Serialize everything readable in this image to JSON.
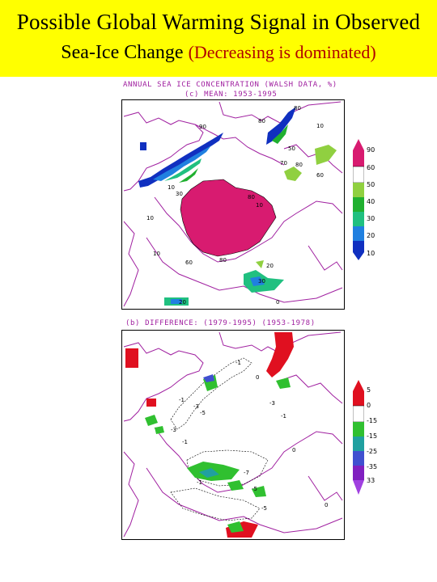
{
  "title": {
    "line1": "Possible Global Warming Signal in Observed",
    "line2_main": "Sea-Ice Change",
    "line2_accent": "(Decreasing is dominated)",
    "band_color": "#ffff00",
    "accent_color": "#b00000"
  },
  "top_map": {
    "header_line1": "ANNUAL SEA ICE CONCENTRATION (WALSH DATA, %)",
    "header_line2": "(c) MEAN: 1953-1995",
    "contour_labels": [
      "90",
      "80",
      "10",
      "80",
      "80",
      "60",
      "10",
      "30",
      "80",
      "10",
      "20",
      "30",
      "60",
      "80",
      "50",
      "70",
      "10",
      "10",
      "20",
      "0"
    ],
    "colorbar_labels": [
      "90",
      "60",
      "50",
      "40",
      "30",
      "20",
      "10"
    ]
  },
  "bottom_map": {
    "header_line1": "(b) DIFFERENCE: (1979-1995) (1953-1978)",
    "contour_labels": [
      "-1",
      "-3",
      "-5",
      "-1",
      "0",
      "-3",
      "-1",
      "-7",
      "-5",
      "-1",
      "0",
      "-3",
      "-1",
      "-5",
      "0"
    ],
    "colorbar_labels": [
      "5",
      "0",
      "-15",
      "-15",
      "-25",
      "-35",
      "33"
    ]
  },
  "palette": {
    "ice_90": "#d81b70",
    "ice_60": "#ffffff",
    "ice_50": "#90d040",
    "ice_40": "#20b030",
    "ice_30": "#20c080",
    "ice_20": "#2080e0",
    "ice_10": "#1030c0",
    "coast": "#a020a0",
    "diff_pos": "#e01020",
    "diff_neg1": "#30c030",
    "diff_neg2": "#20a0a0",
    "diff_neg3": "#4050d0",
    "diff_neg4": "#8020c0"
  }
}
